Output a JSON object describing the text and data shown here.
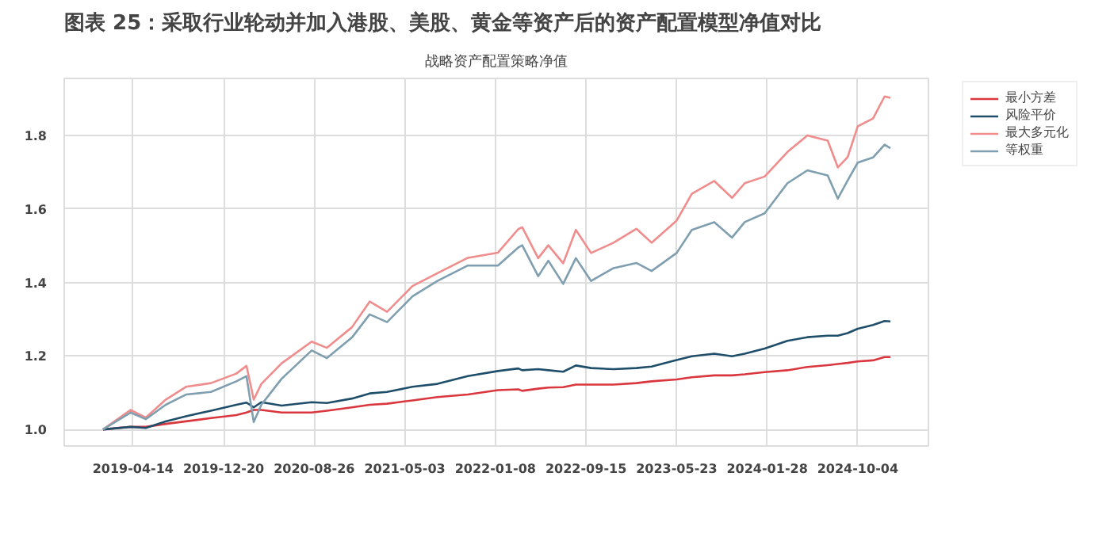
{
  "chart_data": {
    "type": "line",
    "title": "图表 25：采取行业轮动并加入港股、美股、黄金等资产后的资产配置模型净值对比",
    "subtitle": "战略资产配置策略净值",
    "x": [
      "2019-01-21",
      "2019-04-07",
      "2019-05-19",
      "2019-07-13",
      "2019-09-07",
      "2019-11-15",
      "2020-01-24",
      "2020-02-21",
      "2020-03-12",
      "2020-04-02",
      "2020-05-28",
      "2020-08-19",
      "2020-09-30",
      "2020-12-08",
      "2021-01-26",
      "2021-03-15",
      "2021-05-24",
      "2021-08-01",
      "2021-10-24",
      "2022-01-15",
      "2022-03-12",
      "2022-03-23",
      "2022-05-06",
      "2022-06-03",
      "2022-07-14",
      "2022-08-18",
      "2022-09-29",
      "2022-11-30",
      "2023-02-01",
      "2023-03-15",
      "2023-05-23",
      "2023-07-04",
      "2023-09-04",
      "2023-10-23",
      "2023-11-27",
      "2024-01-21",
      "2024-03-24",
      "2024-05-18",
      "2024-07-13",
      "2024-08-10",
      "2024-09-06",
      "2024-10-04",
      "2024-11-15",
      "2024-12-17",
      "2025-01-02"
    ],
    "series": [
      {
        "name": "最小方差",
        "color": "#d9363e",
        "values": [
          1.0,
          1.007,
          1.007,
          1.015,
          1.022,
          1.031,
          1.039,
          1.046,
          1.053,
          1.053,
          1.046,
          1.046,
          1.051,
          1.06,
          1.067,
          1.07,
          1.079,
          1.088,
          1.095,
          1.107,
          1.109,
          1.105,
          1.111,
          1.114,
          1.115,
          1.122,
          1.122,
          1.122,
          1.126,
          1.131,
          1.136,
          1.142,
          1.147,
          1.147,
          1.15,
          1.156,
          1.161,
          1.17,
          1.175,
          1.178,
          1.181,
          1.185,
          1.188,
          1.197,
          1.197
        ]
      },
      {
        "name": "风险平价",
        "color": "#1f4e6b",
        "values": [
          1.0,
          1.007,
          1.004,
          1.022,
          1.036,
          1.051,
          1.067,
          1.073,
          1.06,
          1.074,
          1.065,
          1.074,
          1.072,
          1.084,
          1.098,
          1.102,
          1.116,
          1.124,
          1.145,
          1.159,
          1.166,
          1.161,
          1.164,
          1.161,
          1.157,
          1.174,
          1.167,
          1.164,
          1.167,
          1.171,
          1.189,
          1.199,
          1.206,
          1.199,
          1.206,
          1.22,
          1.241,
          1.251,
          1.255,
          1.255,
          1.262,
          1.274,
          1.284,
          1.295,
          1.294
        ]
      },
      {
        "name": "最大多元化",
        "color": "#f08c8c",
        "values": [
          1.0,
          1.053,
          1.032,
          1.081,
          1.116,
          1.126,
          1.152,
          1.173,
          1.081,
          1.124,
          1.18,
          1.239,
          1.222,
          1.278,
          1.348,
          1.32,
          1.39,
          1.425,
          1.467,
          1.481,
          1.545,
          1.55,
          1.466,
          1.501,
          1.452,
          1.543,
          1.48,
          1.508,
          1.546,
          1.508,
          1.568,
          1.641,
          1.676,
          1.63,
          1.67,
          1.688,
          1.755,
          1.8,
          1.786,
          1.713,
          1.741,
          1.825,
          1.846,
          1.906,
          1.902
        ]
      },
      {
        "name": "等权重",
        "color": "#7f9fb0",
        "values": [
          1.0,
          1.046,
          1.028,
          1.067,
          1.095,
          1.102,
          1.131,
          1.145,
          1.02,
          1.067,
          1.138,
          1.215,
          1.194,
          1.25,
          1.313,
          1.292,
          1.362,
          1.404,
          1.446,
          1.446,
          1.495,
          1.501,
          1.417,
          1.459,
          1.396,
          1.466,
          1.404,
          1.439,
          1.453,
          1.431,
          1.48,
          1.543,
          1.564,
          1.522,
          1.564,
          1.588,
          1.67,
          1.705,
          1.691,
          1.628,
          1.677,
          1.726,
          1.74,
          1.775,
          1.765
        ]
      }
    ],
    "xlim": [
      "2018-10-06",
      "2025-04-17"
    ],
    "xticks": [
      "2019-04-14",
      "2019-12-20",
      "2020-08-26",
      "2021-05-03",
      "2022-01-08",
      "2022-09-15",
      "2023-05-23",
      "2024-01-28",
      "2024-10-04"
    ],
    "ylim": [
      0.955,
      1.955
    ],
    "yticks": [
      {
        "value": 1.0,
        "label": "1.0"
      },
      {
        "value": 1.2,
        "label": "1.2"
      },
      {
        "value": 1.4,
        "label": "1.4"
      },
      {
        "value": 1.6,
        "label": "1.6"
      },
      {
        "value": 1.8,
        "label": "1.8"
      }
    ],
    "grid": true,
    "legend": "top right",
    "line_style": "solid"
  }
}
